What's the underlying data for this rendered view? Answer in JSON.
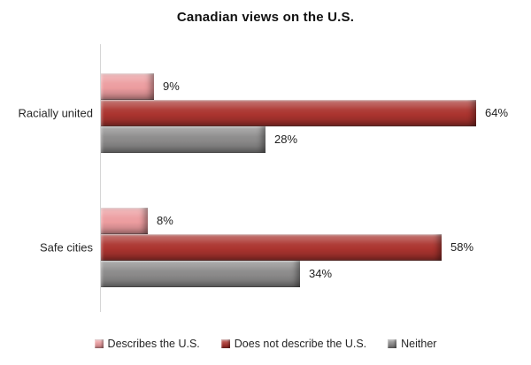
{
  "title": "Canadian views on the U.S.",
  "chart_data": {
    "type": "bar",
    "orientation": "horizontal",
    "title": "Canadian views on the U.S.",
    "categories": [
      "Racially united",
      "Safe cities"
    ],
    "series": [
      {
        "name": "Describes the U.S.",
        "color": "#ec9c9f",
        "values": [
          9,
          8
        ],
        "labels": [
          "9%",
          "8%"
        ]
      },
      {
        "name": "Does not describe the U.S.",
        "color": "#ab342f",
        "values": [
          64,
          58
        ],
        "labels": [
          "64%",
          "58%"
        ]
      },
      {
        "name": "Neither",
        "color": "#8a8989",
        "values": [
          28,
          34
        ],
        "labels": [
          "28%",
          "34%"
        ]
      }
    ],
    "xlabel": "",
    "ylabel": "",
    "xlim": [
      0,
      70
    ],
    "grid": false,
    "legend_position": "bottom",
    "axis_color": "#d6d6d6"
  }
}
